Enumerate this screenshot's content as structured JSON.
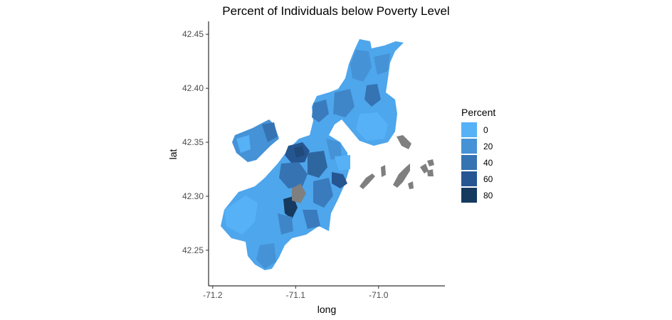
{
  "title": "Percent of Individuals below Poverty Level",
  "chart_data": {
    "type": "choropleth map",
    "xlabel": "long",
    "ylabel": "lat",
    "xlim": [
      -71.205,
      -70.92
    ],
    "ylim": [
      42.217,
      42.462
    ],
    "x_ticks": [
      {
        "value": -71.2,
        "label": "-71.2"
      },
      {
        "value": -71.1,
        "label": "-71.1"
      },
      {
        "value": -71.0,
        "label": "-71.0"
      }
    ],
    "y_ticks": [
      {
        "value": 42.25,
        "label": "42.25"
      },
      {
        "value": 42.3,
        "label": "42.30"
      },
      {
        "value": 42.35,
        "label": "42.35"
      },
      {
        "value": 42.4,
        "label": "42.40"
      },
      {
        "value": 42.45,
        "label": "42.45"
      }
    ],
    "grid": false,
    "legend_position": "right",
    "legend": {
      "title": "Percent",
      "items": [
        {
          "label": "0",
          "color": "#56b1f7"
        },
        {
          "label": "20",
          "color": "#4592d6"
        },
        {
          "label": "40",
          "color": "#3573b3"
        },
        {
          "label": "60",
          "color": "#255691"
        },
        {
          "label": "80",
          "color": "#163a5f"
        }
      ]
    },
    "na_color": "#7f7f7f"
  }
}
